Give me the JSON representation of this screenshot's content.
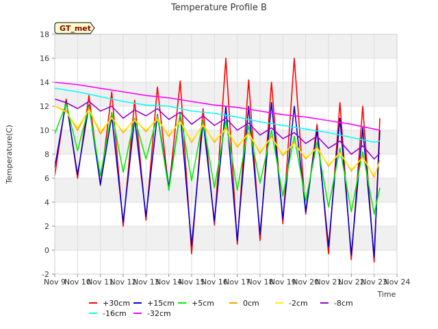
{
  "chart_data": {
    "type": "line",
    "title": "Temperature Profile B",
    "xlabel": "Time",
    "ylabel": "Temperature(C)",
    "badge": "GT_met",
    "grid": true,
    "legend_position": "bottom",
    "xlim": [
      "2023-11-09",
      "2023-11-24"
    ],
    "ylim": [
      -2,
      18
    ],
    "x_ticks": [
      "Nov 9",
      "Nov 10",
      "Nov 11",
      "Nov 12",
      "Nov 13",
      "Nov 14",
      "Nov 15",
      "Nov 16",
      "Nov 17",
      "Nov 18",
      "Nov 19",
      "Nov 20",
      "Nov 21",
      "Nov 22",
      "Nov 23",
      "Nov 24"
    ],
    "y_ticks": [
      -2,
      0,
      2,
      4,
      6,
      8,
      10,
      12,
      14,
      16,
      18
    ],
    "series": [
      {
        "name": "+30cm",
        "color": "#ff0000",
        "x": [
          "2023-11-09",
          "2023-11-09 12:00",
          "2023-11-10",
          "2023-11-10 12:00",
          "2023-11-11",
          "2023-11-11 12:00",
          "2023-11-12",
          "2023-11-12 12:00",
          "2023-11-13",
          "2023-11-13 12:00",
          "2023-11-14",
          "2023-11-14 12:00",
          "2023-11-15",
          "2023-11-15 12:00",
          "2023-11-16",
          "2023-11-16 12:00",
          "2023-11-17",
          "2023-11-17 12:00",
          "2023-11-18",
          "2023-11-18 12:00",
          "2023-11-19",
          "2023-11-19 12:00",
          "2023-11-20",
          "2023-11-20 12:00",
          "2023-11-21",
          "2023-11-21 12:00",
          "2023-11-22",
          "2023-11-22 12:00",
          "2023-11-23",
          "2023-11-23 06:00"
        ],
        "values": [
          6.2,
          12.6,
          6.0,
          12.9,
          5.4,
          13.2,
          2.0,
          12.5,
          2.5,
          13.6,
          5.0,
          14.1,
          -0.3,
          11.8,
          2.1,
          16.0,
          0.5,
          14.2,
          0.8,
          14.0,
          2.2,
          16.0,
          3.0,
          10.5,
          -0.3,
          12.3,
          -0.8,
          12.0,
          -1.0,
          11.0
        ]
      },
      {
        "name": "+15cm",
        "color": "#0000cc",
        "x": [
          "2023-11-09",
          "2023-11-09 12:00",
          "2023-11-10",
          "2023-11-10 12:00",
          "2023-11-11",
          "2023-11-11 12:00",
          "2023-11-12",
          "2023-11-12 12:00",
          "2023-11-13",
          "2023-11-13 12:00",
          "2023-11-14",
          "2023-11-14 12:00",
          "2023-11-15",
          "2023-11-15 12:00",
          "2023-11-16",
          "2023-11-16 12:00",
          "2023-11-17",
          "2023-11-17 12:00",
          "2023-11-18",
          "2023-11-18 12:00",
          "2023-11-19",
          "2023-11-19 12:00",
          "2023-11-20",
          "2023-11-20 12:00",
          "2023-11-21",
          "2023-11-21 12:00",
          "2023-11-22",
          "2023-11-22 12:00",
          "2023-11-23",
          "2023-11-23 06:00"
        ],
        "values": [
          6.9,
          12.4,
          6.3,
          12.1,
          5.5,
          11.2,
          2.3,
          11.0,
          2.8,
          11.3,
          5.3,
          11.4,
          0.4,
          10.8,
          2.4,
          12.0,
          0.8,
          12.0,
          1.3,
          12.3,
          2.6,
          12.0,
          3.2,
          10.0,
          0.3,
          11.0,
          -0.4,
          10.2,
          -0.6,
          10.0
        ]
      },
      {
        "name": "+5cm",
        "color": "#00ee00",
        "x": [
          "2023-11-09",
          "2023-11-09 12:00",
          "2023-11-10",
          "2023-11-10 12:00",
          "2023-11-11",
          "2023-11-11 12:00",
          "2023-11-12",
          "2023-11-12 12:00",
          "2023-11-13",
          "2023-11-13 12:00",
          "2023-11-14",
          "2023-11-14 12:00",
          "2023-11-15",
          "2023-11-15 12:00",
          "2023-11-16",
          "2023-11-16 12:00",
          "2023-11-17",
          "2023-11-17 12:00",
          "2023-11-18",
          "2023-11-18 12:00",
          "2023-11-19",
          "2023-11-19 12:00",
          "2023-11-20",
          "2023-11-20 12:00",
          "2023-11-21",
          "2023-11-21 12:00",
          "2023-11-22",
          "2023-11-22 12:00",
          "2023-11-23",
          "2023-11-23 06:00"
        ],
        "values": [
          9.7,
          12.2,
          8.3,
          12.0,
          6.2,
          11.5,
          6.5,
          11.0,
          7.6,
          11.2,
          5.0,
          11.4,
          5.8,
          10.8,
          5.2,
          10.8,
          5.0,
          10.4,
          5.6,
          10.0,
          4.5,
          9.5,
          4.1,
          9.0,
          3.6,
          8.5,
          3.2,
          8.2,
          3.0,
          5.2
        ]
      },
      {
        "name": "0cm",
        "color": "#ff9900",
        "x": [
          "2023-11-09",
          "2023-11-09 12:00",
          "2023-11-10",
          "2023-11-10 12:00",
          "2023-11-11",
          "2023-11-11 12:00",
          "2023-11-12",
          "2023-11-12 12:00",
          "2023-11-13",
          "2023-11-13 12:00",
          "2023-11-14",
          "2023-11-14 12:00",
          "2023-11-15",
          "2023-11-15 12:00",
          "2023-11-16",
          "2023-11-16 12:00",
          "2023-11-17",
          "2023-11-17 12:00",
          "2023-11-18",
          "2023-11-18 12:00",
          "2023-11-19",
          "2023-11-19 12:00",
          "2023-11-20",
          "2023-11-20 12:00",
          "2023-11-21",
          "2023-11-21 12:00",
          "2023-11-22",
          "2023-11-22 12:00",
          "2023-11-23",
          "2023-11-23 06:00"
        ],
        "values": [
          12.0,
          11.6,
          10.0,
          11.8,
          9.7,
          11.1,
          9.8,
          10.9,
          9.9,
          11.0,
          9.5,
          10.8,
          9.0,
          10.5,
          9.0,
          10.2,
          8.6,
          9.8,
          8.1,
          9.5,
          7.9,
          9.0,
          7.6,
          8.6,
          7.0,
          8.2,
          6.6,
          7.8,
          6.1,
          7.5
        ]
      },
      {
        "name": "-2cm",
        "color": "#ffee00",
        "x": [
          "2023-11-09",
          "2023-11-09 12:00",
          "2023-11-10",
          "2023-11-10 12:00",
          "2023-11-11",
          "2023-11-11 12:00",
          "2023-11-12",
          "2023-11-12 12:00",
          "2023-11-13",
          "2023-11-13 12:00",
          "2023-11-14",
          "2023-11-14 12:00",
          "2023-11-15",
          "2023-11-15 12:00",
          "2023-11-16",
          "2023-11-16 12:00",
          "2023-11-17",
          "2023-11-17 12:00",
          "2023-11-18",
          "2023-11-18 12:00",
          "2023-11-19",
          "2023-11-19 12:00",
          "2023-11-20",
          "2023-11-20 12:00",
          "2023-11-21",
          "2023-11-21 12:00",
          "2023-11-22",
          "2023-11-22 12:00",
          "2023-11-23",
          "2023-11-23 06:00"
        ],
        "values": [
          12.0,
          11.5,
          10.2,
          11.7,
          9.9,
          11.0,
          9.9,
          10.8,
          10.0,
          10.9,
          9.6,
          10.7,
          9.1,
          10.4,
          9.1,
          10.1,
          8.7,
          9.7,
          8.2,
          9.4,
          8.0,
          8.9,
          7.7,
          8.5,
          7.1,
          8.1,
          6.7,
          7.7,
          6.2,
          7.4
        ]
      },
      {
        "name": "-8cm",
        "color": "#9900cc",
        "x": [
          "2023-11-09",
          "2023-11-09 12:00",
          "2023-11-10",
          "2023-11-10 12:00",
          "2023-11-11",
          "2023-11-11 12:00",
          "2023-11-12",
          "2023-11-12 12:00",
          "2023-11-13",
          "2023-11-13 12:00",
          "2023-11-14",
          "2023-11-14 12:00",
          "2023-11-15",
          "2023-11-15 12:00",
          "2023-11-16",
          "2023-11-16 12:00",
          "2023-11-17",
          "2023-11-17 12:00",
          "2023-11-18",
          "2023-11-18 12:00",
          "2023-11-19",
          "2023-11-19 12:00",
          "2023-11-20",
          "2023-11-20 12:00",
          "2023-11-21",
          "2023-11-21 12:00",
          "2023-11-22",
          "2023-11-22 12:00",
          "2023-11-23",
          "2023-11-23 06:00"
        ],
        "values": [
          12.6,
          12.3,
          11.8,
          12.4,
          11.6,
          12.0,
          11.0,
          11.7,
          11.2,
          11.8,
          10.9,
          11.5,
          10.5,
          11.2,
          10.4,
          11.0,
          10.0,
          10.6,
          9.6,
          10.2,
          9.3,
          9.8,
          8.9,
          9.5,
          8.5,
          9.1,
          8.0,
          8.7,
          7.6,
          8.1
        ]
      },
      {
        "name": "-16cm",
        "color": "#00ffff",
        "x": [
          "2023-11-09",
          "2023-11-10",
          "2023-11-11",
          "2023-11-12",
          "2023-11-13",
          "2023-11-14",
          "2023-11-15",
          "2023-11-16",
          "2023-11-17",
          "2023-11-18",
          "2023-11-19",
          "2023-11-20",
          "2023-11-21",
          "2023-11-22",
          "2023-11-23",
          "2023-11-23 06:00"
        ],
        "values": [
          13.5,
          13.2,
          12.8,
          12.4,
          12.1,
          12.0,
          11.6,
          11.4,
          11.1,
          10.7,
          10.4,
          10.1,
          9.8,
          9.4,
          9.0,
          9.1
        ]
      },
      {
        "name": "-32cm",
        "color": "#ff00ff",
        "x": [
          "2023-11-09",
          "2023-11-10",
          "2023-11-11",
          "2023-11-12",
          "2023-11-13",
          "2023-11-14",
          "2023-11-15",
          "2023-11-16",
          "2023-11-17",
          "2023-11-18",
          "2023-11-19",
          "2023-11-20",
          "2023-11-21",
          "2023-11-22",
          "2023-11-23",
          "2023-11-23 06:00"
        ],
        "values": [
          14.0,
          13.8,
          13.5,
          13.2,
          12.9,
          12.7,
          12.4,
          12.1,
          11.9,
          11.6,
          11.3,
          11.1,
          10.8,
          10.5,
          10.1,
          10.0
        ]
      }
    ]
  }
}
